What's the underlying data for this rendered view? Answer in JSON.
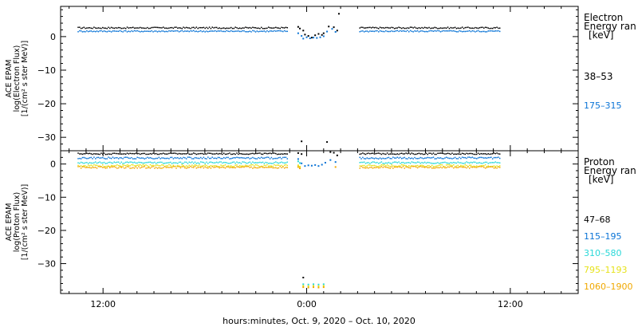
{
  "chart_data": [
    {
      "type": "scatter",
      "panel": "electron",
      "ylabel_lines": [
        "ACE EPAM",
        "log(Electron Flux)",
        "[1/(cm² s ster MeV)]"
      ],
      "ylim": [
        -34,
        9
      ],
      "yticks": [
        {
          "value": 0,
          "label": "0"
        },
        {
          "value": -10,
          "label": "−10"
        },
        {
          "value": -20,
          "label": "−20"
        },
        {
          "value": -30,
          "label": "−30"
        }
      ],
      "legend_title_lines": [
        "Electron",
        "Energy ran",
        "[keV]"
      ],
      "series": [
        {
          "name": "38–53",
          "color": "#000000",
          "segments": [
            {
              "x0": -13.5,
              "x1": -1.1,
              "y": 2.6,
              "jitter": 0.2
            },
            {
              "x0": 3.1,
              "x1": 11.4,
              "y": 2.6,
              "jitter": 0.2
            }
          ],
          "points": [
            [
              -0.5,
              2.9
            ],
            [
              -0.4,
              2.4
            ],
            [
              -0.2,
              1.8
            ],
            [
              -0.1,
              0.6
            ],
            [
              0.1,
              0.2
            ],
            [
              0.3,
              -0.3
            ],
            [
              0.5,
              0.4
            ],
            [
              0.7,
              0.8
            ],
            [
              0.9,
              0.5
            ],
            [
              1.0,
              1.0
            ],
            [
              1.3,
              3.0
            ],
            [
              1.6,
              2.8
            ],
            [
              1.8,
              1.8
            ],
            [
              1.9,
              6.8
            ],
            [
              -0.3,
              -31.2
            ],
            [
              1.2,
              -31.4
            ]
          ]
        },
        {
          "name": "175–315",
          "color": "#0a74d6",
          "segments": [
            {
              "x0": -13.5,
              "x1": -1.1,
              "y": 1.6,
              "jitter": 0.2
            },
            {
              "x0": 3.1,
              "x1": 11.4,
              "y": 1.6,
              "jitter": 0.2
            }
          ],
          "points": [
            [
              -0.5,
              1.0
            ],
            [
              -0.3,
              0.2
            ],
            [
              -0.2,
              -0.6
            ],
            [
              0.0,
              -0.2
            ],
            [
              0.2,
              -0.5
            ],
            [
              0.4,
              -0.3
            ],
            [
              0.6,
              -0.4
            ],
            [
              0.8,
              -0.2
            ],
            [
              1.0,
              0.1
            ],
            [
              1.2,
              1.5
            ],
            [
              1.5,
              2.3
            ],
            [
              1.7,
              1.4
            ]
          ]
        }
      ]
    },
    {
      "type": "scatter",
      "panel": "proton",
      "ylabel_lines": [
        "ACE EPAM",
        "log(Proton Flux)",
        "[1/(cm² s ster MeV)]"
      ],
      "ylim": [
        -39,
        4
      ],
      "yticks": [
        {
          "value": 0,
          "label": "0"
        },
        {
          "value": -10,
          "label": "−10"
        },
        {
          "value": -20,
          "label": "−20"
        },
        {
          "value": -30,
          "label": "−30"
        }
      ],
      "legend_title_lines": [
        "Proton",
        "Energy ran",
        "[keV]"
      ],
      "series": [
        {
          "name": "47–68",
          "color": "#000000",
          "segments": [
            {
              "x0": -13.5,
              "x1": -1.1,
              "y": 3.1,
              "jitter": 0.2
            },
            {
              "x0": 3.1,
              "x1": 11.4,
              "y": 3.1,
              "jitter": 0.2
            }
          ],
          "points": [
            [
              -0.5,
              3.3
            ],
            [
              -0.3,
              3.0
            ],
            [
              1.4,
              3.6
            ],
            [
              1.6,
              3.4
            ],
            [
              1.8,
              2.6
            ],
            [
              -0.2,
              -34.2
            ]
          ]
        },
        {
          "name": "115–195",
          "color": "#0a74d6",
          "segments": [
            {
              "x0": -13.5,
              "x1": -1.1,
              "y": 1.8,
              "jitter": 0.25
            },
            {
              "x0": 3.1,
              "x1": 11.4,
              "y": 1.8,
              "jitter": 0.25
            }
          ],
          "points": [
            [
              -0.5,
              1.5
            ],
            [
              -0.3,
              0.2
            ],
            [
              -0.1,
              -0.6
            ],
            [
              0.1,
              -0.4
            ],
            [
              0.3,
              -0.5
            ],
            [
              0.5,
              -0.3
            ],
            [
              0.7,
              -0.6
            ],
            [
              0.9,
              -0.2
            ],
            [
              1.1,
              0.4
            ],
            [
              1.4,
              1.2
            ],
            [
              1.7,
              0.6
            ]
          ]
        },
        {
          "name": "310–580",
          "color": "#2ad8d8",
          "segments": [
            {
              "x0": -13.5,
              "x1": -1.1,
              "y": 0.4,
              "jitter": 0.25
            },
            {
              "x0": 3.1,
              "x1": 11.4,
              "y": 0.4,
              "jitter": 0.25
            }
          ],
          "points": [
            [
              -0.5,
              0.8
            ],
            [
              -0.4,
              0.3
            ],
            [
              -0.2,
              -36.2
            ],
            [
              0.1,
              -36.3
            ],
            [
              0.4,
              -36.2
            ],
            [
              0.7,
              -36.3
            ],
            [
              1.0,
              -36.2
            ]
          ]
        },
        {
          "name": "795–1193",
          "color": "#e6e21a",
          "segments": [
            {
              "x0": -13.5,
              "x1": -1.1,
              "y": -0.5,
              "jitter": 0.3
            },
            {
              "x0": 3.1,
              "x1": 11.4,
              "y": -0.5,
              "jitter": 0.3
            }
          ],
          "points": [
            [
              -0.5,
              -0.4
            ],
            [
              -0.4,
              -0.8
            ],
            [
              -0.2,
              -36.7
            ],
            [
              0.1,
              -36.8
            ],
            [
              0.4,
              -36.7
            ],
            [
              0.7,
              -36.8
            ],
            [
              1.0,
              -36.7
            ]
          ]
        },
        {
          "name": "1060–1900",
          "color": "#f0a800",
          "segments": [
            {
              "x0": -13.5,
              "x1": -1.1,
              "y": -1.0,
              "jitter": 0.3
            },
            {
              "x0": 3.1,
              "x1": 11.4,
              "y": -1.0,
              "jitter": 0.3
            }
          ],
          "points": [
            [
              -0.5,
              -0.9
            ],
            [
              -0.4,
              -1.3
            ],
            [
              1.7,
              -0.9
            ],
            [
              -0.2,
              -37.1
            ],
            [
              0.1,
              -37.2
            ],
            [
              0.4,
              -37.1
            ],
            [
              0.7,
              -37.2
            ],
            [
              1.0,
              -37.1
            ]
          ]
        }
      ]
    }
  ],
  "x_axis": {
    "xlim": [
      -14.5,
      16
    ],
    "ticks": [
      {
        "value": -12,
        "label": "12:00"
      },
      {
        "value": 0,
        "label": "0:00"
      },
      {
        "value": 12,
        "label": "12:00"
      }
    ],
    "title": "hours:minutes, Oct.  9, 2020 – Oct. 10, 2020"
  },
  "colors": {
    "axes": "#000000",
    "background": "#ffffff"
  }
}
